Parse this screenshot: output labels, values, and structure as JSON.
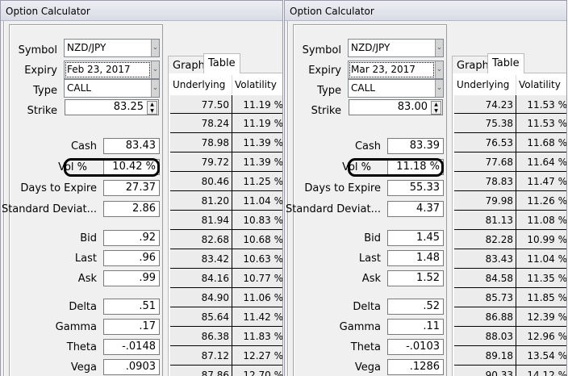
{
  "windows": [
    {
      "title": "Option Calculator",
      "symbol_label": "Symbol",
      "symbol": "NZD/JPY",
      "expiry_label": "Expiry",
      "expiry": "Feb 23, 2017",
      "type_label": "Type",
      "type": "CALL",
      "strike_label": "Strike",
      "strike": "83.25",
      "fields": [
        {
          "label": "Cash",
          "value": "83.43"
        },
        {
          "label": "Vol %",
          "value": "10.42 %"
        },
        {
          "label": "Days to Expire",
          "value": "27.37"
        },
        {
          "label": "Standard Deviat...",
          "value": "2.86"
        },
        {
          "label": "Bid",
          "value": ".92"
        },
        {
          "label": "Last",
          "value": ".96"
        },
        {
          "label": "Ask",
          "value": ".99"
        },
        {
          "label": "Delta",
          "value": ".51"
        },
        {
          "label": "Gamma",
          "value": ".17"
        },
        {
          "label": "Theta",
          "value": "-.0148"
        },
        {
          "label": "Vega",
          "value": ".0903"
        }
      ],
      "tabs": [
        "Graph",
        "Table"
      ],
      "active_tab": "Table",
      "table": {
        "headers": [
          "Underlying",
          "Volatility"
        ],
        "rows": [
          [
            "77.50",
            "11.19 %"
          ],
          [
            "78.24",
            "11.19 %"
          ],
          [
            "78.98",
            "11.39 %"
          ],
          [
            "79.72",
            "11.39 %"
          ],
          [
            "80.46",
            "11.25 %"
          ],
          [
            "81.20",
            "11.04 %"
          ],
          [
            "81.94",
            "10.83 %"
          ],
          [
            "82.68",
            "10.68 %"
          ],
          [
            "83.42",
            "10.63 %"
          ],
          [
            "84.16",
            "10.77 %"
          ],
          [
            "84.90",
            "11.06 %"
          ],
          [
            "85.64",
            "11.42 %"
          ],
          [
            "86.38",
            "11.83 %"
          ],
          [
            "87.12",
            "12.27 %"
          ],
          [
            "87.86",
            "12.70 %"
          ]
        ]
      }
    },
    {
      "title": "Option Calculator",
      "symbol_label": "Symbol",
      "symbol": "NZD/JPY",
      "expiry_label": "Expiry",
      "expiry": "Mar 23, 2017",
      "type_label": "Type",
      "type": "CALL",
      "strike_label": "Strike",
      "strike": "83.00",
      "fields": [
        {
          "label": "Cash",
          "value": "83.39"
        },
        {
          "label": "Vol %",
          "value": "11.18 %"
        },
        {
          "label": "Days to Expire",
          "value": "55.33"
        },
        {
          "label": "Standard Deviat...",
          "value": "4.37"
        },
        {
          "label": "Bid",
          "value": "1.45"
        },
        {
          "label": "Last",
          "value": "1.48"
        },
        {
          "label": "Ask",
          "value": "1.52"
        },
        {
          "label": "Delta",
          "value": ".52"
        },
        {
          "label": "Gamma",
          "value": ".11"
        },
        {
          "label": "Theta",
          "value": "-.0103"
        },
        {
          "label": "Vega",
          "value": ".1286"
        }
      ],
      "tabs": [
        "Graph",
        "Table"
      ],
      "active_tab": "Table",
      "table": {
        "headers": [
          "Underlying",
          "Volatility"
        ],
        "rows": [
          [
            "74.23",
            "11.53 %"
          ],
          [
            "75.38",
            "11.53 %"
          ],
          [
            "76.53",
            "11.68 %"
          ],
          [
            "77.68",
            "11.64 %"
          ],
          [
            "78.83",
            "11.47 %"
          ],
          [
            "79.98",
            "11.26 %"
          ],
          [
            "81.13",
            "11.08 %"
          ],
          [
            "82.28",
            "10.99 %"
          ],
          [
            "83.43",
            "11.04 %"
          ],
          [
            "84.58",
            "11.35 %"
          ],
          [
            "85.73",
            "11.85 %"
          ],
          [
            "86.88",
            "12.39 %"
          ],
          [
            "88.03",
            "12.96 %"
          ],
          [
            "89.18",
            "13.54 %"
          ],
          [
            "90.33",
            "14.12 %"
          ]
        ]
      }
    }
  ]
}
